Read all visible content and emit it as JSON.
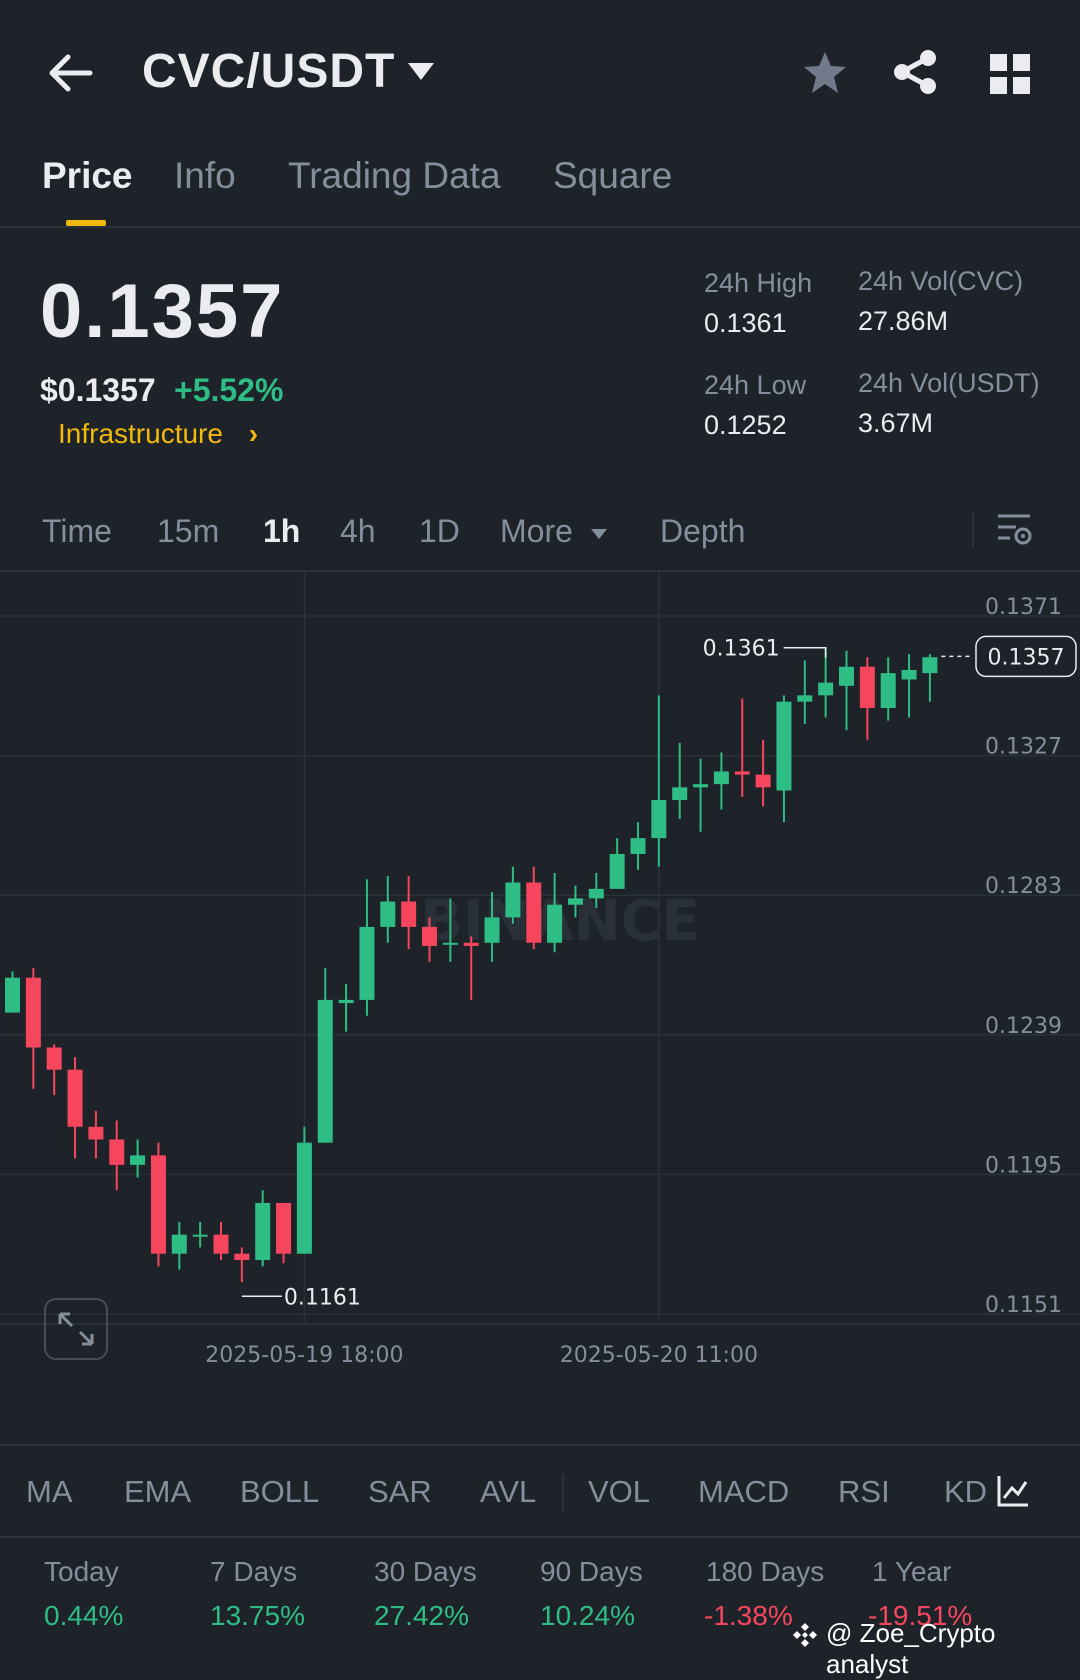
{
  "header": {
    "pair": "CVC/USDT",
    "icons": [
      "back-arrow-icon",
      "caret-down-icon",
      "star-icon",
      "share-icon",
      "grid-icon"
    ]
  },
  "tabs": [
    "Price",
    "Info",
    "Trading Data",
    "Square"
  ],
  "active_tab": "Price",
  "price": {
    "last": "0.1357",
    "usd": "$0.1357",
    "change": "+5.52%",
    "sector": "Infrastructure",
    "sector_chevron": "›"
  },
  "stats": {
    "high_label": "24h High",
    "high_value": "0.1361",
    "low_label": "24h Low",
    "low_value": "0.1252",
    "vol_base_label": "24h Vol(CVC)",
    "vol_base_value": "27.86M",
    "vol_quote_label": "24h Vol(USDT)",
    "vol_quote_value": "3.67M"
  },
  "intervals": [
    "Time",
    "15m",
    "1h",
    "4h",
    "1D",
    "More",
    "Depth"
  ],
  "active_interval": "1h",
  "chart_data": {
    "type": "candlestick",
    "watermark": "BINANCE",
    "y_ticks": [
      "0.1371",
      "0.1327",
      "0.1283",
      "0.1239",
      "0.1195",
      "0.1151"
    ],
    "ylim": [
      0.1151,
      0.1371
    ],
    "x_ticks": [
      {
        "label": "2025-05-19 18:00",
        "index": 14
      },
      {
        "label": "2025-05-20 11:00",
        "index": 31
      }
    ],
    "current_price": "0.1357",
    "max_label": {
      "text": "0.1361",
      "index": 39
    },
    "min_label": {
      "text": "0.1161",
      "index": 11
    },
    "colors": {
      "up": "#2ebd85",
      "down": "#f6465d"
    },
    "candles": [
      [
        0.1246,
        0.1257,
        0.1248,
        0.1259
      ],
      [
        0.1257,
        0.1235,
        0.1222,
        0.126
      ],
      [
        0.1235,
        0.1228,
        0.122,
        0.1236
      ],
      [
        0.1228,
        0.121,
        0.12,
        0.1232
      ],
      [
        0.121,
        0.1206,
        0.12,
        0.1215
      ],
      [
        0.1206,
        0.1198,
        0.119,
        0.1212
      ],
      [
        0.1198,
        0.1201,
        0.1194,
        0.1206
      ],
      [
        0.1201,
        0.117,
        0.1166,
        0.1205
      ],
      [
        0.117,
        0.1176,
        0.1165,
        0.118
      ],
      [
        0.1176,
        0.1176,
        0.1172,
        0.118
      ],
      [
        0.1176,
        0.117,
        0.1168,
        0.118
      ],
      [
        0.117,
        0.1168,
        0.1161,
        0.1172
      ],
      [
        0.1168,
        0.1186,
        0.1166,
        0.119
      ],
      [
        0.1186,
        0.117,
        0.1167,
        0.1186
      ],
      [
        0.117,
        0.1205,
        0.117,
        0.121
      ],
      [
        0.1205,
        0.125,
        0.1205,
        0.126
      ],
      [
        0.1249,
        0.125,
        0.124,
        0.1255
      ],
      [
        0.125,
        0.1273,
        0.1245,
        0.1288
      ],
      [
        0.1273,
        0.1281,
        0.1268,
        0.1289
      ],
      [
        0.1281,
        0.1273,
        0.1266,
        0.1289
      ],
      [
        0.1273,
        0.1267,
        0.1262,
        0.1276
      ],
      [
        0.1268,
        0.1268,
        0.1262,
        0.1282
      ],
      [
        0.1268,
        0.1267,
        0.125,
        0.127
      ],
      [
        0.1268,
        0.1276,
        0.1262,
        0.1284
      ],
      [
        0.1276,
        0.1287,
        0.1274,
        0.1292
      ],
      [
        0.1287,
        0.1268,
        0.1266,
        0.1292
      ],
      [
        0.1268,
        0.128,
        0.1265,
        0.129
      ],
      [
        0.128,
        0.1282,
        0.1276,
        0.1286
      ],
      [
        0.1282,
        0.1285,
        0.1279,
        0.129
      ],
      [
        0.1285,
        0.1296,
        0.1285,
        0.1301
      ],
      [
        0.1296,
        0.1301,
        0.1291,
        0.1306
      ],
      [
        0.1301,
        0.1313,
        0.1292,
        0.1346
      ],
      [
        0.1313,
        0.1317,
        0.1307,
        0.1331
      ],
      [
        0.1317,
        0.1318,
        0.1303,
        0.1326
      ],
      [
        0.1318,
        0.1322,
        0.131,
        0.1328
      ],
      [
        0.1322,
        0.1321,
        0.1314,
        0.1345
      ],
      [
        0.1321,
        0.1317,
        0.1311,
        0.1332
      ],
      [
        0.1316,
        0.1344,
        0.1306,
        0.1346
      ],
      [
        0.1344,
        0.1346,
        0.1337,
        0.1357
      ],
      [
        0.1346,
        0.135,
        0.1339,
        0.1361
      ],
      [
        0.1349,
        0.1355,
        0.1335,
        0.136
      ],
      [
        0.1355,
        0.1342,
        0.1332,
        0.1358
      ],
      [
        0.1342,
        0.1353,
        0.1338,
        0.1358
      ],
      [
        0.1351,
        0.1354,
        0.1339,
        0.1359
      ],
      [
        0.1353,
        0.1358,
        0.1344,
        0.1359
      ]
    ]
  },
  "indicators": [
    "MA",
    "EMA",
    "BOLL",
    "SAR",
    "AVL",
    "VOL",
    "MACD",
    "RSI",
    "KD"
  ],
  "performance": [
    {
      "label": "Today",
      "value": "0.44%",
      "color": "#2ebd85"
    },
    {
      "label": "7 Days",
      "value": "13.75%",
      "color": "#2ebd85"
    },
    {
      "label": "30 Days",
      "value": "27.42%",
      "color": "#2ebd85"
    },
    {
      "label": "90 Days",
      "value": "10.24%",
      "color": "#2ebd85"
    },
    {
      "label": "180 Days",
      "value": "-1.38%",
      "color": "#f6465d"
    },
    {
      "label": "1 Year",
      "value": "-19.51%",
      "color": "#f6465d"
    }
  ],
  "watermark_credit": "@ Zoe_Crypto analyst"
}
